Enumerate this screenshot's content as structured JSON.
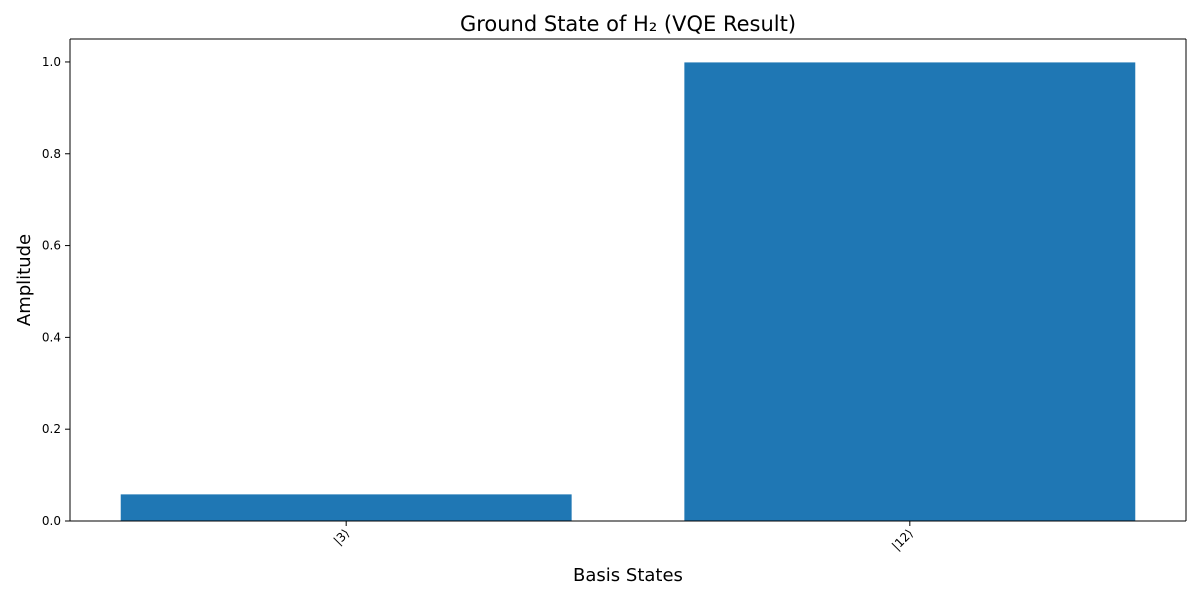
{
  "chart_data": {
    "type": "bar",
    "title": "Ground State of H₂ (VQE Result)",
    "xlabel": "Basis States",
    "ylabel": "Amplitude",
    "categories": [
      "|3⟩",
      "|12⟩"
    ],
    "values": [
      0.058,
      0.999
    ],
    "ylim": [
      0,
      1.05
    ],
    "yticks": [
      0.0,
      0.2,
      0.4,
      0.6,
      0.8,
      1.0
    ],
    "ytick_labels": [
      "0.0",
      "0.2",
      "0.4",
      "0.6",
      "0.8",
      "1.0"
    ],
    "bar_color": "#1f77b4",
    "grid": false,
    "legend": "none"
  }
}
